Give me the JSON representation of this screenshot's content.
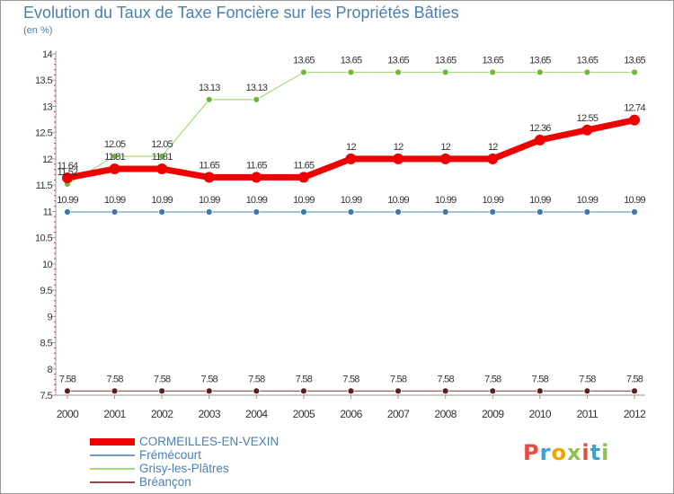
{
  "title": "Evolution du Taux de Taxe Foncière sur les Propriétés Bâties",
  "unit_label": "(en %)",
  "logo": {
    "text": "Proxiti",
    "colors": [
      "#e74c3c",
      "#3aa1d8",
      "#f0a500",
      "#8bc34a",
      "#e74c3c",
      "#3aa1d8",
      "#8bc34a"
    ]
  },
  "chart_data": {
    "type": "line",
    "x": [
      "2000",
      "2001",
      "2002",
      "2003",
      "2004",
      "2005",
      "2006",
      "2007",
      "2008",
      "2009",
      "2010",
      "2011",
      "2012"
    ],
    "ylim": [
      7.5,
      14
    ],
    "yticks": [
      "7.5",
      "8",
      "8.5",
      "9",
      "9.5",
      "10",
      "10.5",
      "11",
      "11.5",
      "12",
      "12.5",
      "13",
      "13.5",
      "14"
    ],
    "grid": false,
    "legend_position": "bottom-left",
    "series": [
      {
        "name": "CORMEILLES-EN-VEXIN",
        "color": "#ee0000",
        "line_width": 7,
        "marker_radius": 6,
        "values": [
          11.64,
          11.81,
          11.81,
          11.65,
          11.65,
          11.65,
          12,
          12,
          12,
          12,
          12.36,
          12.55,
          12.74
        ],
        "labels": [
          "11.64",
          "11.81",
          "11.81",
          "11.65",
          "11.65",
          "11.65",
          "12",
          "12",
          "12",
          "12",
          "12.36",
          "12.55",
          "12.74"
        ]
      },
      {
        "name": "Frémécourt",
        "color": "#6a9ccc",
        "line_width": 1.2,
        "marker_radius": 3.5,
        "values": [
          10.99,
          10.99,
          10.99,
          10.99,
          10.99,
          10.99,
          10.99,
          10.99,
          10.99,
          10.99,
          10.99,
          10.99,
          10.99
        ],
        "labels": [
          "10.99",
          "10.99",
          "10.99",
          "10.99",
          "10.99",
          "10.99",
          "10.99",
          "10.99",
          "10.99",
          "10.99",
          "10.99",
          "10.99",
          "10.99"
        ]
      },
      {
        "name": "Grisy-les-Plâtres",
        "color": "#a6d97a",
        "line_width": 1.2,
        "marker_radius": 3.5,
        "values": [
          11.52,
          12.05,
          12.05,
          13.13,
          13.13,
          13.65,
          13.65,
          13.65,
          13.65,
          13.65,
          13.65,
          13.65,
          13.65
        ],
        "labels": [
          "11.52",
          "12.05",
          "12.05",
          "13.13",
          "13.13",
          "13.65",
          "13.65",
          "13.65",
          "13.65",
          "13.65",
          "13.65",
          "13.65",
          "13.65"
        ]
      },
      {
        "name": "Bréançon",
        "color": "#8a4a4a",
        "line_width": 1.2,
        "marker_radius": 3.5,
        "values": [
          7.58,
          7.58,
          7.58,
          7.58,
          7.58,
          7.58,
          7.58,
          7.58,
          7.58,
          7.58,
          7.58,
          7.58,
          7.58
        ],
        "labels": [
          "7.58",
          "7.58",
          "7.58",
          "7.58",
          "7.58",
          "7.58",
          "7.58",
          "7.58",
          "7.58",
          "7.58",
          "7.58",
          "7.58",
          "7.58"
        ]
      }
    ]
  }
}
